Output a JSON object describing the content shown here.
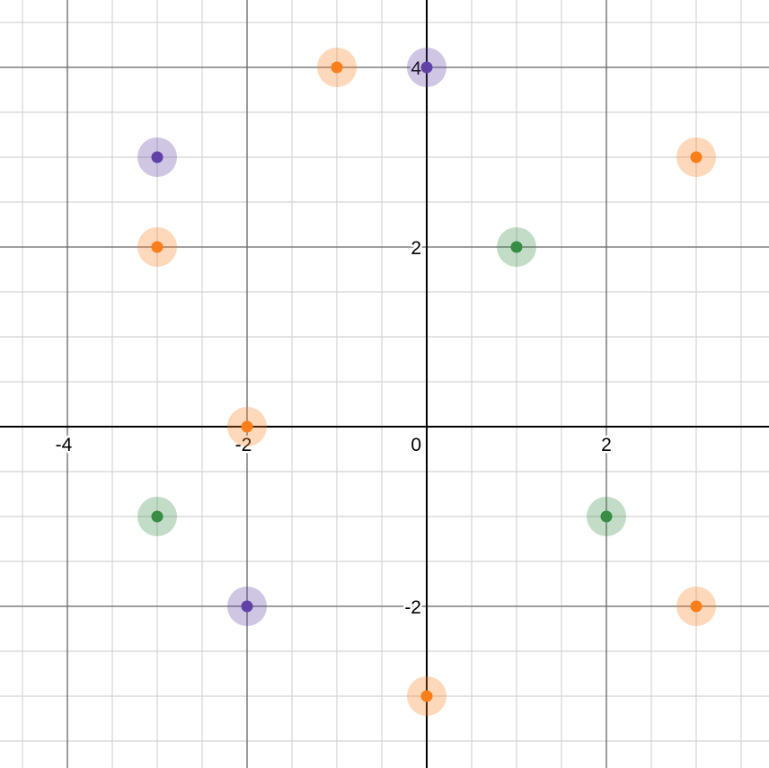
{
  "chart_data": {
    "type": "scatter",
    "xlim": [
      -4.75,
      3.81
    ],
    "ylim": [
      -3.8,
      4.75
    ],
    "grid": true,
    "x_ticks": [
      {
        "value": -4,
        "label": "-4"
      },
      {
        "value": -2,
        "label": "-2"
      },
      {
        "value": 2,
        "label": "2"
      }
    ],
    "y_ticks": [
      {
        "value": 4,
        "label": "4"
      },
      {
        "value": 2,
        "label": "2"
      },
      {
        "value": -2,
        "label": "-2"
      }
    ],
    "origin_label": "0",
    "series": [
      {
        "color": "#fa7e19",
        "points": [
          {
            "x": -1,
            "y": 4
          },
          {
            "x": 3,
            "y": 3
          },
          {
            "x": -3,
            "y": 2
          },
          {
            "x": -2,
            "y": 0
          },
          {
            "x": 3,
            "y": -2
          },
          {
            "x": 0,
            "y": -3
          }
        ]
      },
      {
        "color": "#6042a6",
        "points": [
          {
            "x": 0,
            "y": 4
          },
          {
            "x": -3,
            "y": 3
          },
          {
            "x": -2,
            "y": -2
          }
        ]
      },
      {
        "color": "#388c46",
        "points": [
          {
            "x": 1,
            "y": 2
          },
          {
            "x": -3,
            "y": -1
          },
          {
            "x": 2,
            "y": -1
          }
        ]
      }
    ]
  }
}
